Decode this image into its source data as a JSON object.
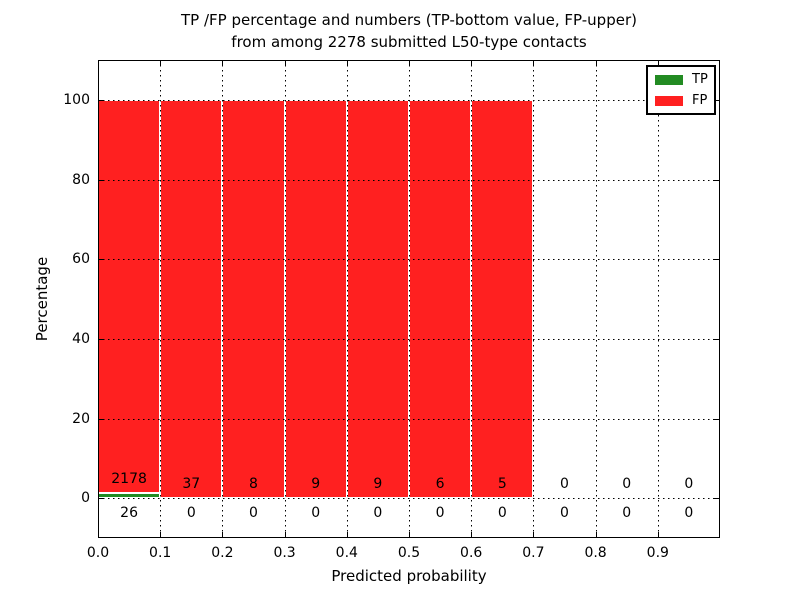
{
  "chart_data": {
    "type": "bar",
    "stacked": true,
    "title_line1": "TP /FP percentage and numbers (TP-bottom value, FP-upper)",
    "title_line2": "from among 2278 submitted L50-type contacts",
    "xlabel": "Predicted probability",
    "ylabel": "Percentage",
    "xlim": [
      0.0,
      1.0
    ],
    "ylim": [
      -10,
      110
    ],
    "xtick_labels": [
      "0.0",
      "0.1",
      "0.2",
      "0.3",
      "0.4",
      "0.5",
      "0.6",
      "0.7",
      "0.8",
      "0.9"
    ],
    "xtick_values": [
      0.0,
      0.1,
      0.2,
      0.3,
      0.4,
      0.5,
      0.6,
      0.7,
      0.8,
      0.9
    ],
    "ytick_values": [
      0,
      20,
      40,
      60,
      80,
      100
    ],
    "bin_width": 0.1,
    "bin_starts": [
      0.0,
      0.1,
      0.2,
      0.3,
      0.4,
      0.5,
      0.6,
      0.7,
      0.8,
      0.9
    ],
    "grid": true,
    "series": [
      {
        "name": "TP",
        "color": "#228b22",
        "counts": [
          26,
          0,
          0,
          0,
          0,
          0,
          0,
          0,
          0,
          0
        ],
        "percent": [
          1.18,
          0,
          0,
          0,
          0,
          0,
          0,
          0,
          0,
          0
        ]
      },
      {
        "name": "FP",
        "color": "#ff2020",
        "counts": [
          2178,
          37,
          8,
          9,
          9,
          6,
          5,
          0,
          0,
          0
        ],
        "percent": [
          98.82,
          100,
          100,
          100,
          100,
          100,
          100,
          0,
          0,
          0
        ]
      }
    ],
    "legend": {
      "position": "upper right",
      "entries": [
        {
          "label": "TP",
          "color": "#228b22"
        },
        {
          "label": "FP",
          "color": "#ff2020"
        }
      ]
    }
  }
}
